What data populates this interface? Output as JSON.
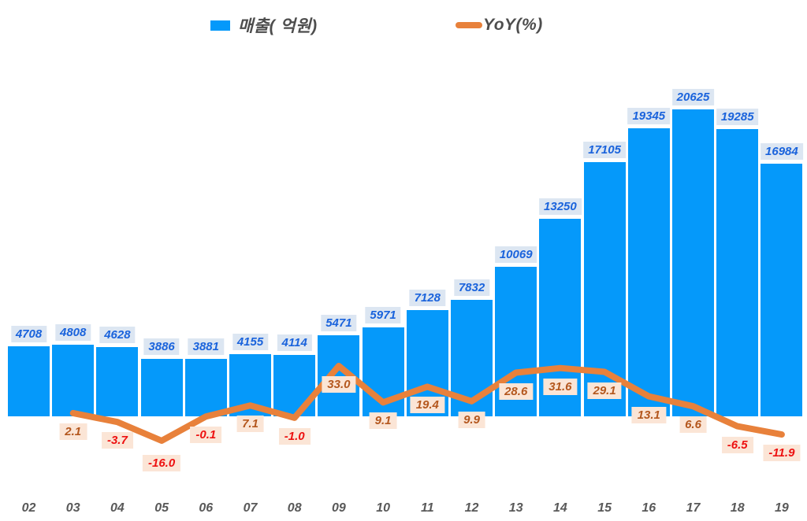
{
  "legend": {
    "revenue_label": "매출( 억원)",
    "yoy_label": "YoY(%)"
  },
  "colors": {
    "bar": "#0599FA",
    "line": "#E8813B",
    "bar_label_text": "#1A63DC",
    "bar_label_bg": "#DCE6F2",
    "yoy_label_bg": "#FBE5D6",
    "yoy_positive_text": "#B4571E",
    "yoy_negative_text": "#ED1111",
    "axis_text": "#595959",
    "legend_text": "#4D4D4D"
  },
  "chart_data": {
    "type": "bar",
    "title": "",
    "xlabel": "",
    "ylabel": "",
    "gridlines": false,
    "legend_position": "top",
    "categories": [
      "02",
      "03",
      "04",
      "05",
      "06",
      "07",
      "08",
      "09",
      "10",
      "11",
      "12",
      "13",
      "14",
      "15",
      "16",
      "17",
      "18",
      "19"
    ],
    "series": [
      {
        "name": "매출(억원)",
        "type": "bar",
        "axis": "primary",
        "values": [
          4708,
          4808,
          4628,
          3886,
          3881,
          4155,
          4114,
          5471,
          5971,
          7128,
          7832,
          10069,
          13250,
          17105,
          19345,
          20625,
          19285,
          16984
        ]
      },
      {
        "name": "YoY(%)",
        "type": "line",
        "axis": "secondary",
        "values": [
          null,
          2.1,
          -3.7,
          -16.0,
          -0.1,
          7.1,
          -1.0,
          33.0,
          9.1,
          19.4,
          9.9,
          28.6,
          31.6,
          29.1,
          13.1,
          6.6,
          -6.5,
          -11.9
        ]
      }
    ],
    "data_labels": true
  }
}
